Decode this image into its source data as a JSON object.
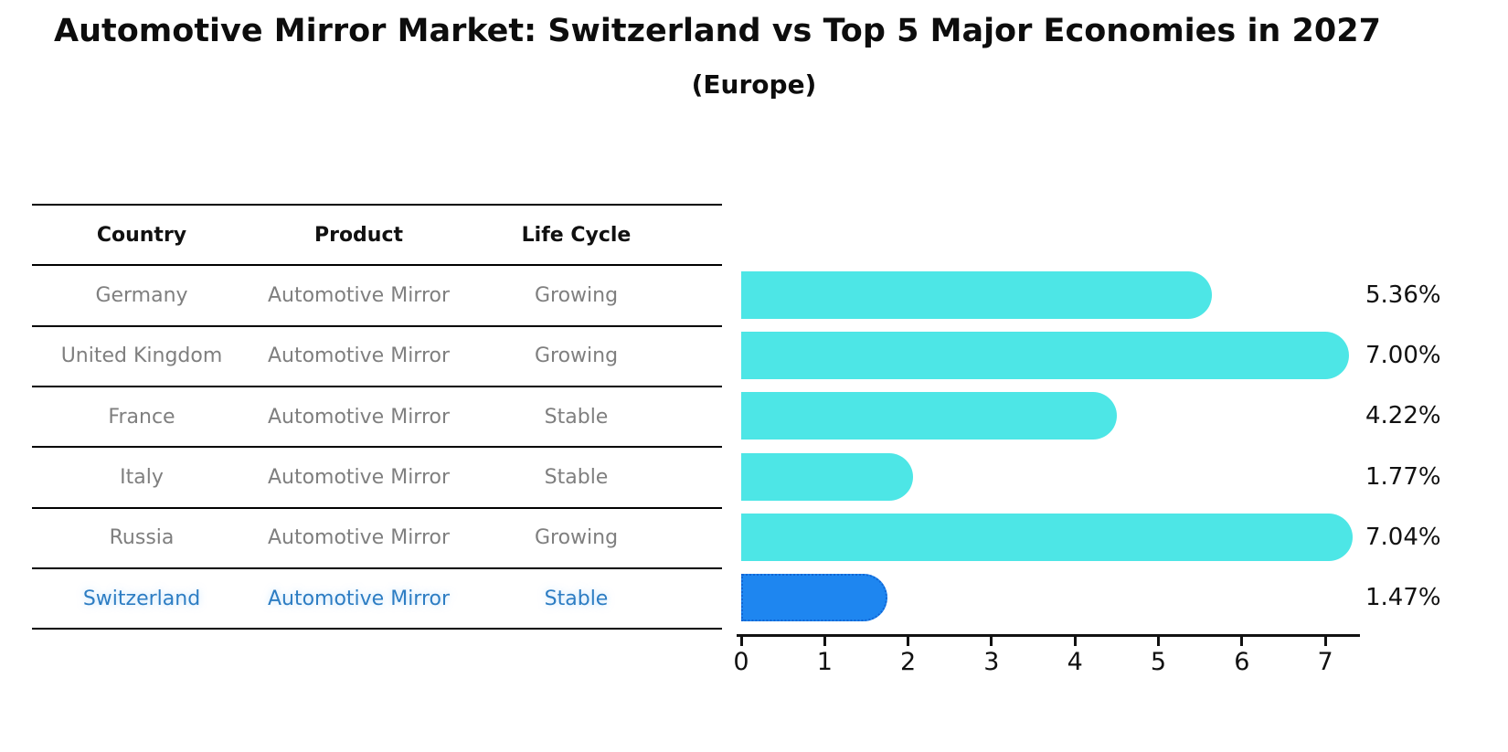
{
  "title": "Automotive Mirror Market: Switzerland vs Top 5 Major Economies in 2027",
  "subtitle": "(Europe)",
  "table": {
    "headers": [
      "Country",
      "Product",
      "Life Cycle"
    ],
    "rows": [
      {
        "country": "Germany",
        "product": "Automotive Mirror",
        "life_cycle": "Growing",
        "highlighted": false
      },
      {
        "country": "United Kingdom",
        "product": "Automotive Mirror",
        "life_cycle": "Growing",
        "highlighted": false
      },
      {
        "country": "France",
        "product": "Automotive Mirror",
        "life_cycle": "Stable",
        "highlighted": false
      },
      {
        "country": "Italy",
        "product": "Automotive Mirror",
        "life_cycle": "Stable",
        "highlighted": false
      },
      {
        "country": "Russia",
        "product": "Automotive Mirror",
        "life_cycle": "Growing",
        "highlighted": false
      },
      {
        "country": "Switzerland",
        "product": "Automotive Mirror",
        "life_cycle": "Stable",
        "highlighted": true
      }
    ]
  },
  "chart_data": {
    "type": "bar",
    "orientation": "horizontal",
    "title": "Automotive Mirror Market: Switzerland vs Top 5 Major Economies in 2027",
    "subtitle": "(Europe)",
    "unit": "%",
    "categories": [
      "Germany",
      "United Kingdom",
      "France",
      "Italy",
      "Russia",
      "Switzerland"
    ],
    "values": [
      5.36,
      7.0,
      4.22,
      1.77,
      7.04,
      1.47
    ],
    "value_labels": [
      "5.36%",
      "7.00%",
      "4.22%",
      "1.77%",
      "7.04%",
      "1.47%"
    ],
    "x_ticks": [
      0,
      1,
      2,
      3,
      4,
      5,
      6,
      7
    ],
    "xlim": [
      0,
      7.4
    ],
    "grid": false,
    "legend": null,
    "highlight_index": 5,
    "colors": {
      "bar": "#4de6e6",
      "highlight_bar": "#1e86f0",
      "highlight_border": "#1266d4",
      "highlight_text": "#2d7dc3",
      "row_text": "#7f7f7f",
      "header_text": "#111111",
      "axis": "#111111",
      "value_label": "#111111"
    }
  }
}
